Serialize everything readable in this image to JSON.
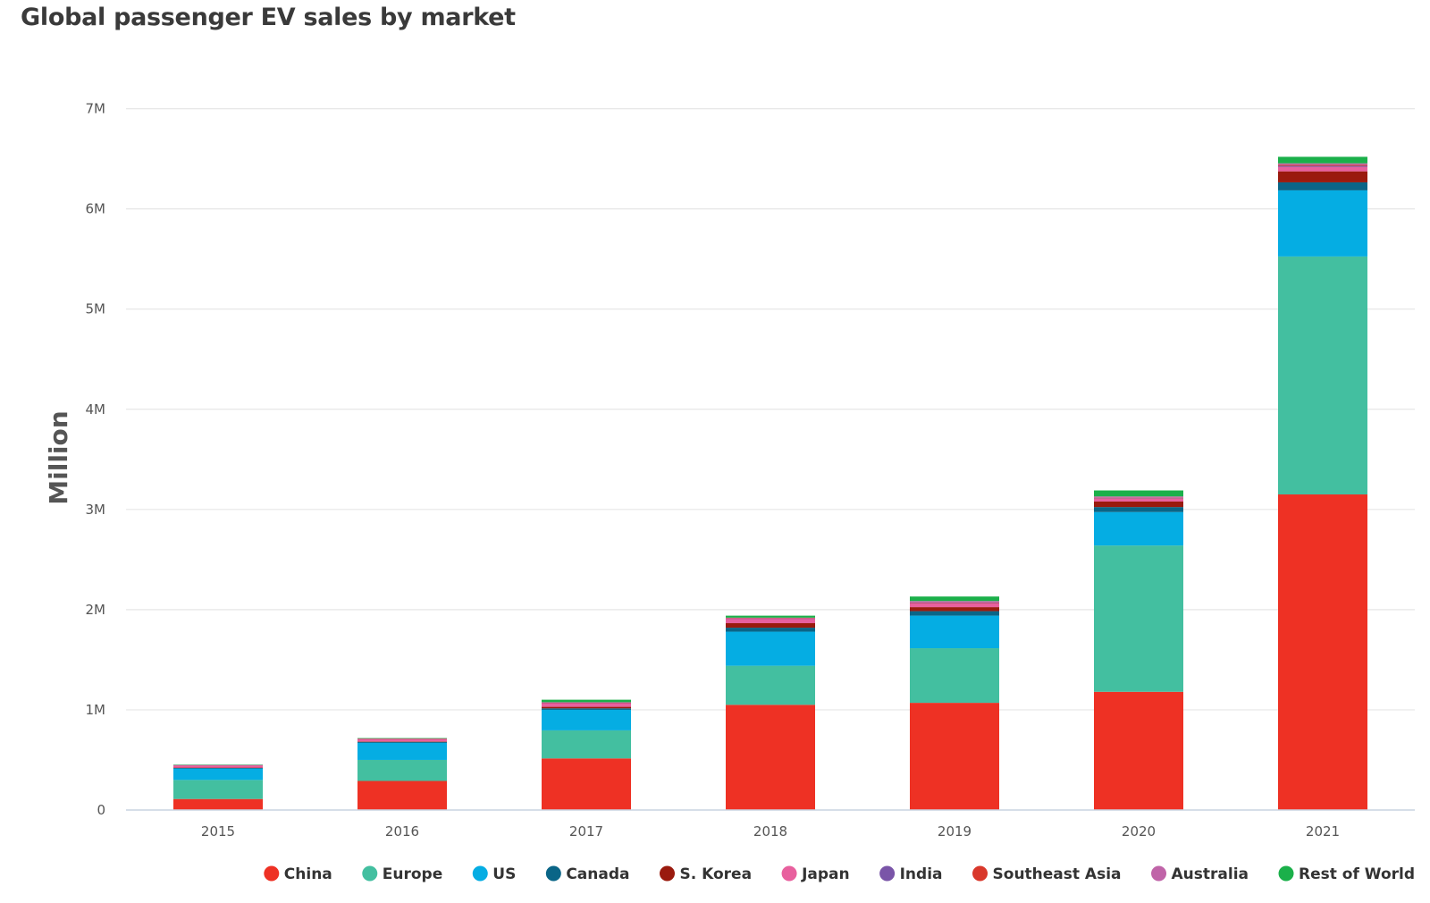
{
  "chart_data": {
    "type": "bar",
    "stacked": true,
    "title": "Global passenger EV sales by market",
    "xlabel": "",
    "ylabel": "Million",
    "ylim": [
      0,
      7000000
    ],
    "yticks": [
      0,
      1000000,
      2000000,
      3000000,
      4000000,
      5000000,
      6000000,
      7000000
    ],
    "ytick_labels": [
      "0",
      "1M",
      "2M",
      "3M",
      "4M",
      "5M",
      "6M",
      "7M"
    ],
    "grid": true,
    "legend_position": "bottom",
    "categories": [
      "2015",
      "2016",
      "2017",
      "2018",
      "2019",
      "2020",
      "2021"
    ],
    "series": [
      {
        "name": "China",
        "color": "#ee3124",
        "values": [
          110000,
          290000,
          515000,
          1050000,
          1070000,
          1180000,
          3150000
        ]
      },
      {
        "name": "Europe",
        "color": "#43bfa0",
        "values": [
          190000,
          210000,
          280000,
          390000,
          545000,
          1460000,
          2375000
        ]
      },
      {
        "name": "US",
        "color": "#05ade3",
        "values": [
          115000,
          170000,
          205000,
          340000,
          325000,
          334000,
          660000
        ]
      },
      {
        "name": "Canada",
        "color": "#0a6587",
        "values": [
          5000,
          10000,
          15000,
          40000,
          45000,
          50000,
          80000
        ]
      },
      {
        "name": "S. Korea",
        "color": "#9a1a0e",
        "values": [
          3000,
          5000,
          15000,
          45000,
          40000,
          55000,
          110000
        ]
      },
      {
        "name": "Japan",
        "color": "#e8609e",
        "values": [
          25000,
          25000,
          40000,
          45000,
          40000,
          30000,
          45000
        ]
      },
      {
        "name": "India",
        "color": "#7a55a8",
        "values": [
          0,
          0,
          1000,
          2000,
          2000,
          3000,
          10000
        ]
      },
      {
        "name": "Southeast Asia",
        "color": "#d9382b",
        "values": [
          0,
          1000,
          2000,
          3000,
          4000,
          5000,
          10000
        ]
      },
      {
        "name": "Australia",
        "color": "#c064a8",
        "values": [
          2000,
          2000,
          3000,
          5000,
          15000,
          13000,
          15000
        ]
      },
      {
        "name": "Rest of World",
        "color": "#1bb04a",
        "values": [
          3000,
          5000,
          25000,
          20000,
          45000,
          60000,
          65000
        ]
      }
    ]
  }
}
